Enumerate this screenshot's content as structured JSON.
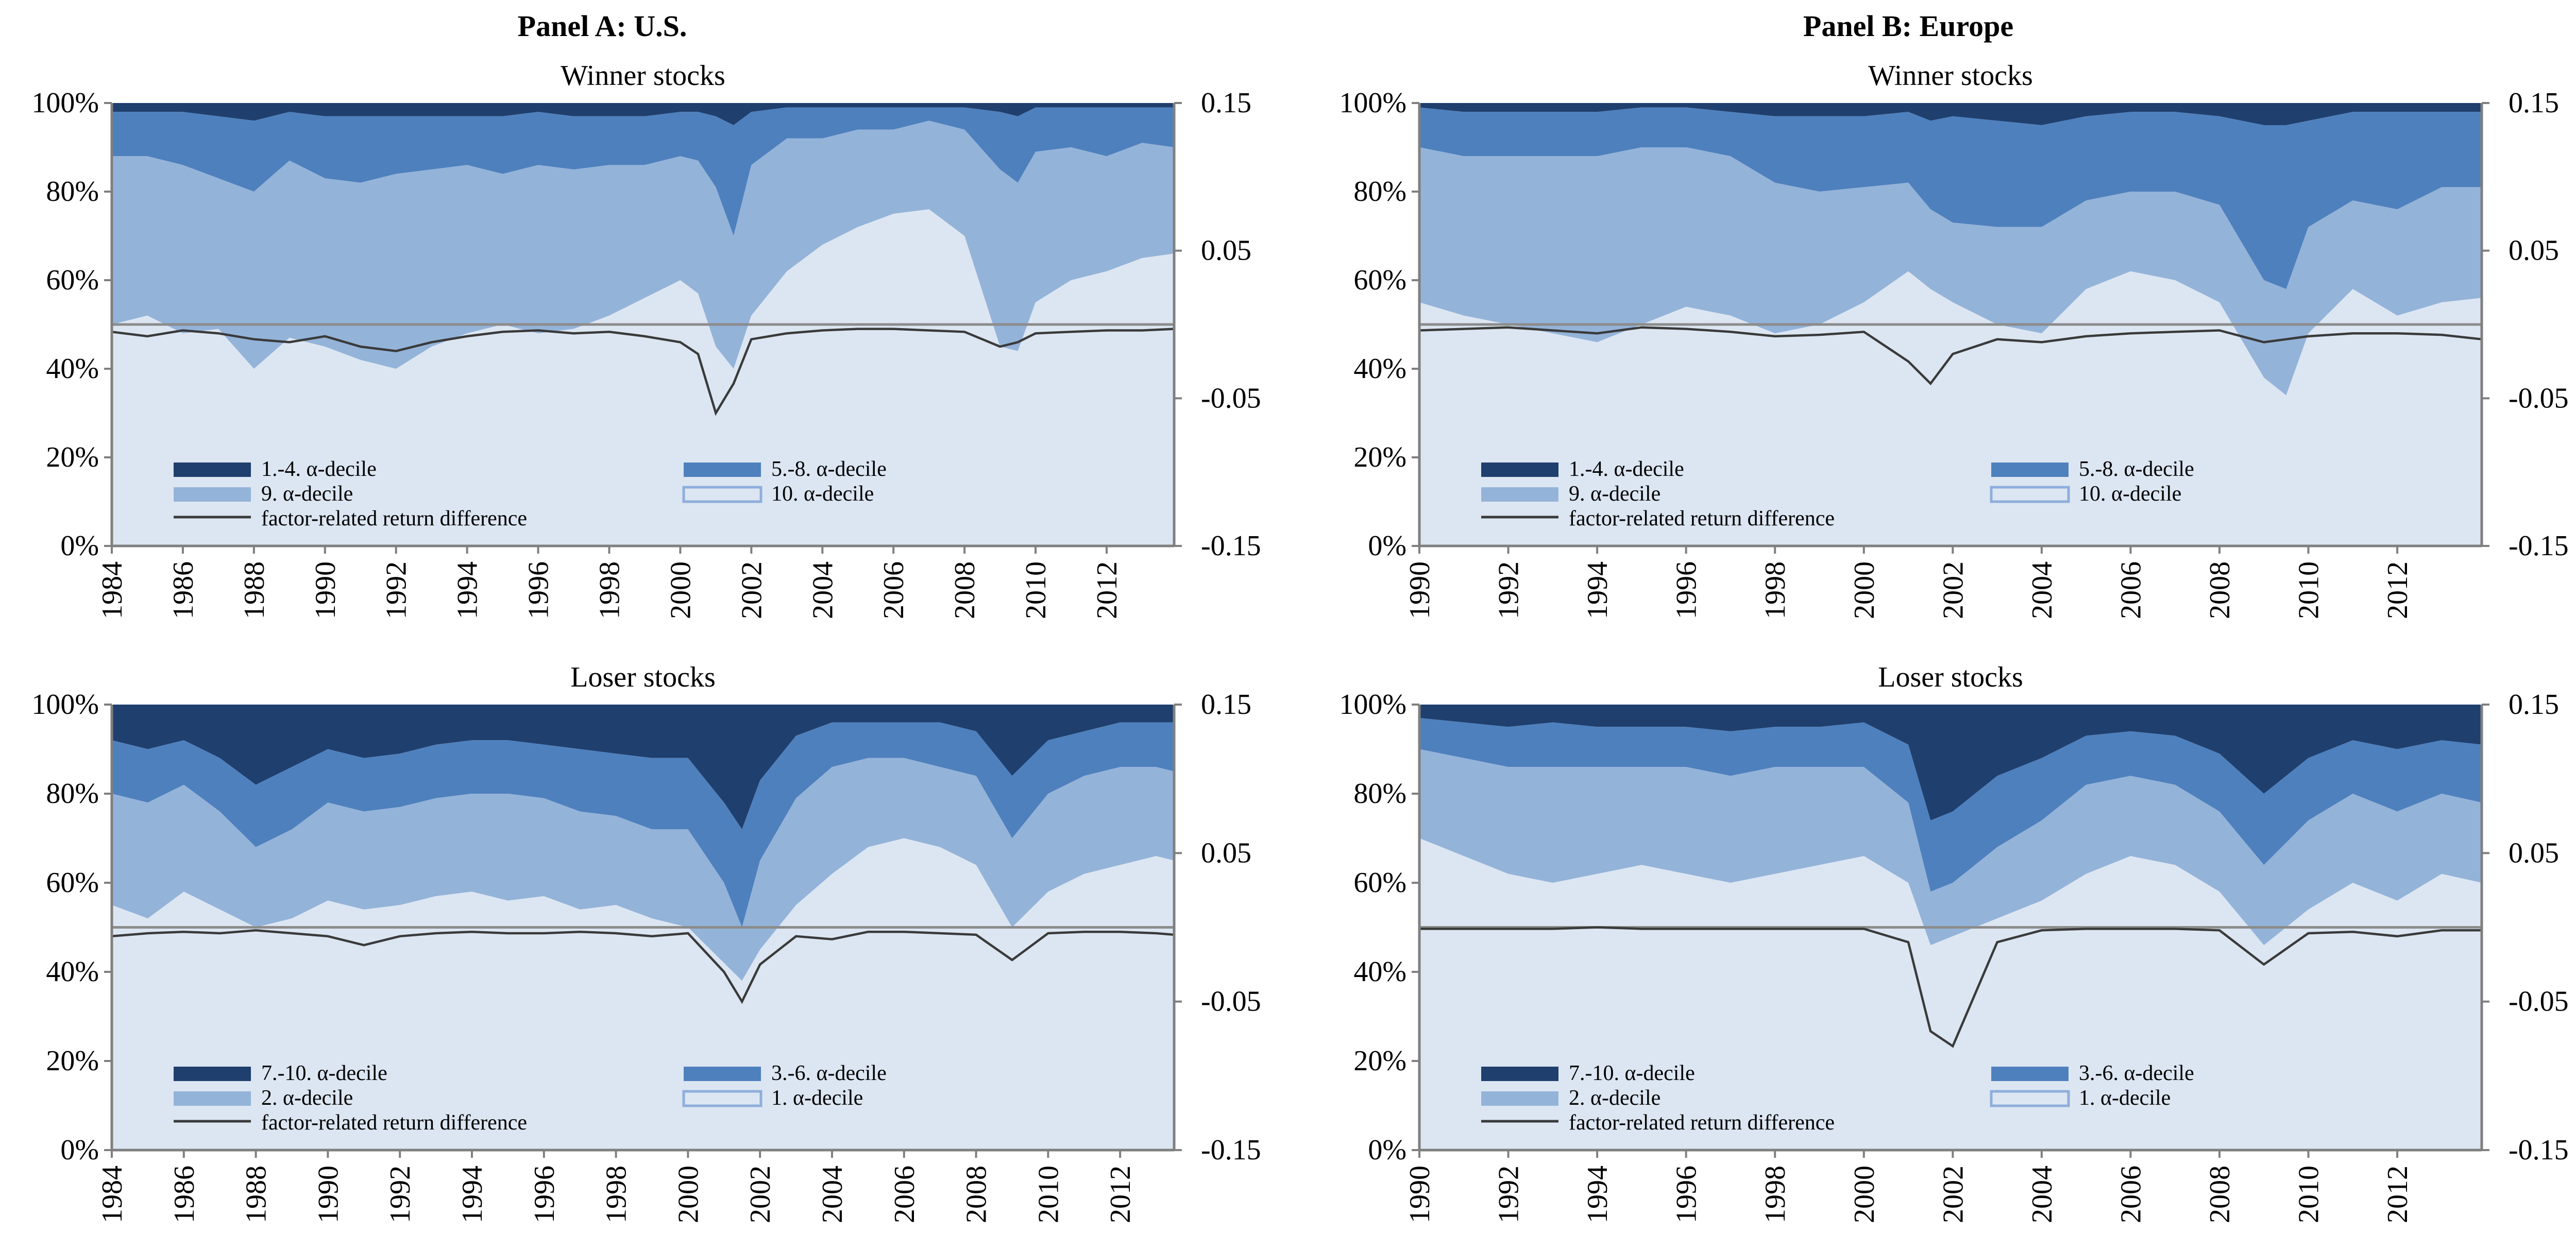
{
  "colors": {
    "band_1": "#1f3f6e",
    "band_2": "#4e80bd",
    "band_3": "#94b3d9",
    "band_4": "#dce6f2",
    "band_4_border": "#8eaedc",
    "line": "#3a3a3a",
    "zero_line": "#8c8c8c",
    "axis": "#7f7f7f"
  },
  "panels": [
    {
      "title": "Panel A: U.S."
    },
    {
      "title": "Panel B: Europe"
    }
  ],
  "chart_data": [
    {
      "type": "area",
      "panel": "Panel A: U.S.",
      "title": "Winner stocks",
      "x_start": 1984,
      "x_end": 2013.9,
      "x_ticks": [
        "1984",
        "1986",
        "1988",
        "1990",
        "1992",
        "1994",
        "1996",
        "1998",
        "2000",
        "2002",
        "2004",
        "2006",
        "2008",
        "2010",
        "2012"
      ],
      "y_left_ticks": [
        "0%",
        "20%",
        "40%",
        "60%",
        "80%",
        "100%"
      ],
      "y_left_range": [
        0,
        100
      ],
      "y_right_ticks": [
        "-0.15",
        "-0.05",
        "0.05",
        "0.15"
      ],
      "y_right_range": [
        -0.15,
        0.15
      ],
      "legend": [
        "1.-4. α-decile",
        "5.-8. α-decile",
        "9. α-decile",
        "10. α-decile",
        "factor-related return difference"
      ],
      "x": [
        1984,
        1985,
        1986,
        1987,
        1988,
        1989,
        1990,
        1991,
        1992,
        1993,
        1994,
        1995,
        1996,
        1997,
        1998,
        1999,
        2000,
        2000.5,
        2001,
        2001.5,
        2002,
        2003,
        2004,
        2005,
        2006,
        2007,
        2008,
        2009,
        2009.5,
        2010,
        2011,
        2012,
        2013,
        2013.9
      ],
      "series": [
        {
          "name": "10. α-decile",
          "values": [
            50,
            52,
            48,
            49,
            40,
            47,
            45,
            42,
            40,
            45,
            48,
            50,
            48,
            49,
            52,
            56,
            60,
            57,
            45,
            40,
            52,
            62,
            68,
            72,
            75,
            76,
            70,
            45,
            44,
            55,
            60,
            62,
            65,
            66
          ]
        },
        {
          "name": "9. α-decile",
          "values": [
            38,
            36,
            38,
            34,
            40,
            40,
            38,
            40,
            44,
            40,
            38,
            34,
            38,
            36,
            34,
            30,
            28,
            30,
            36,
            30,
            34,
            30,
            24,
            22,
            19,
            20,
            24,
            40,
            38,
            34,
            30,
            26,
            26,
            24
          ]
        },
        {
          "name": "5.-8. α-decile",
          "values": [
            10,
            10,
            12,
            14,
            16,
            11,
            14,
            15,
            13,
            12,
            11,
            13,
            12,
            12,
            11,
            11,
            10,
            11,
            16,
            25,
            12,
            7,
            7,
            5,
            5,
            3,
            5,
            13,
            15,
            10,
            9,
            11,
            8,
            9
          ]
        },
        {
          "name": "1.-4. α-decile",
          "values": [
            2,
            2,
            2,
            3,
            4,
            2,
            3,
            3,
            3,
            3,
            3,
            3,
            2,
            3,
            3,
            3,
            2,
            2,
            3,
            5,
            2,
            1,
            1,
            1,
            1,
            1,
            1,
            2,
            3,
            1,
            1,
            1,
            1,
            1
          ]
        }
      ],
      "line": {
        "name": "factor-related return difference",
        "values": [
          -0.005,
          -0.008,
          -0.004,
          -0.006,
          -0.01,
          -0.012,
          -0.008,
          -0.015,
          -0.018,
          -0.012,
          -0.008,
          -0.005,
          -0.004,
          -0.006,
          -0.005,
          -0.008,
          -0.012,
          -0.02,
          -0.06,
          -0.04,
          -0.01,
          -0.006,
          -0.004,
          -0.003,
          -0.003,
          -0.004,
          -0.005,
          -0.015,
          -0.012,
          -0.006,
          -0.005,
          -0.004,
          -0.004,
          -0.003
        ]
      }
    },
    {
      "type": "area",
      "panel": "Panel B: Europe",
      "title": "Winner stocks",
      "x_start": 1990,
      "x_end": 2013.9,
      "x_ticks": [
        "1990",
        "1992",
        "1994",
        "1996",
        "1998",
        "2000",
        "2002",
        "2004",
        "2006",
        "2008",
        "2010",
        "2012"
      ],
      "y_left_ticks": [
        "0%",
        "20%",
        "40%",
        "60%",
        "80%",
        "100%"
      ],
      "y_left_range": [
        0,
        100
      ],
      "y_right_ticks": [
        "-0.15",
        "-0.05",
        "0.05",
        "0.15"
      ],
      "y_right_range": [
        -0.15,
        0.15
      ],
      "legend": [
        "1.-4. α-decile",
        "5.-8. α-decile",
        "9. α-decile",
        "10. α-decile",
        "factor-related return difference"
      ],
      "x": [
        1990,
        1991,
        1992,
        1993,
        1994,
        1995,
        1996,
        1997,
        1998,
        1999,
        2000,
        2001,
        2001.5,
        2002,
        2003,
        2004,
        2005,
        2006,
        2007,
        2008,
        2009,
        2009.5,
        2010,
        2011,
        2012,
        2013,
        2013.9
      ],
      "series": [
        {
          "name": "10. α-decile",
          "values": [
            55,
            52,
            50,
            48,
            46,
            50,
            54,
            52,
            48,
            50,
            55,
            62,
            58,
            55,
            50,
            48,
            58,
            62,
            60,
            55,
            38,
            34,
            48,
            58,
            52,
            55,
            56
          ]
        },
        {
          "name": "9. α-decile",
          "values": [
            35,
            36,
            38,
            40,
            42,
            40,
            36,
            36,
            34,
            30,
            26,
            20,
            18,
            18,
            22,
            24,
            20,
            18,
            20,
            22,
            22,
            24,
            24,
            20,
            24,
            26,
            25
          ]
        },
        {
          "name": "5.-8. α-decile",
          "values": [
            9,
            10,
            10,
            10,
            10,
            9,
            9,
            10,
            15,
            17,
            16,
            16,
            20,
            24,
            24,
            23,
            19,
            18,
            18,
            20,
            35,
            37,
            24,
            20,
            22,
            17,
            17
          ]
        },
        {
          "name": "1.-4. α-decile",
          "values": [
            1,
            2,
            2,
            2,
            2,
            1,
            1,
            2,
            3,
            3,
            3,
            2,
            4,
            3,
            4,
            5,
            3,
            2,
            2,
            3,
            5,
            5,
            4,
            2,
            2,
            2,
            2
          ]
        }
      ],
      "line": {
        "name": "factor-related return difference",
        "values": [
          -0.004,
          -0.003,
          -0.002,
          -0.004,
          -0.006,
          -0.002,
          -0.003,
          -0.005,
          -0.008,
          -0.007,
          -0.005,
          -0.025,
          -0.04,
          -0.02,
          -0.01,
          -0.012,
          -0.008,
          -0.006,
          -0.005,
          -0.004,
          -0.012,
          -0.01,
          -0.008,
          -0.006,
          -0.006,
          -0.007,
          -0.01
        ]
      }
    },
    {
      "type": "area",
      "panel": "Panel A: U.S.",
      "title": "Loser stocks",
      "x_start": 1984,
      "x_end": 2013.5,
      "x_ticks": [
        "1984",
        "1986",
        "1988",
        "1990",
        "1992",
        "1994",
        "1996",
        "1998",
        "2000",
        "2002",
        "2004",
        "2006",
        "2008",
        "2010",
        "2012"
      ],
      "y_left_ticks": [
        "0%",
        "20%",
        "40%",
        "60%",
        "80%",
        "100%"
      ],
      "y_left_range": [
        0,
        100
      ],
      "y_right_ticks": [
        "-0.15",
        "-0.05",
        "0.05",
        "0.15"
      ],
      "y_right_range": [
        -0.15,
        0.15
      ],
      "legend": [
        "7.-10. α-decile",
        "3.-6. α-decile",
        "2. α-decile",
        "1. α-decile",
        "factor-related return difference"
      ],
      "x": [
        1984,
        1985,
        1986,
        1987,
        1988,
        1989,
        1990,
        1991,
        1992,
        1993,
        1994,
        1995,
        1996,
        1997,
        1998,
        1999,
        2000,
        2001,
        2001.5,
        2002,
        2003,
        2004,
        2005,
        2006,
        2007,
        2008,
        2009,
        2010,
        2011,
        2012,
        2013,
        2013.5
      ],
      "series": [
        {
          "name": "1. α-decile",
          "values": [
            55,
            52,
            58,
            54,
            50,
            52,
            56,
            54,
            55,
            57,
            58,
            56,
            57,
            54,
            55,
            52,
            50,
            42,
            38,
            45,
            55,
            62,
            68,
            70,
            68,
            64,
            50,
            58,
            62,
            64,
            66,
            65
          ]
        },
        {
          "name": "2. α-decile",
          "values": [
            25,
            26,
            24,
            22,
            18,
            20,
            22,
            22,
            22,
            22,
            22,
            24,
            22,
            22,
            20,
            20,
            22,
            18,
            12,
            20,
            24,
            24,
            20,
            18,
            18,
            20,
            20,
            22,
            22,
            22,
            20,
            20
          ]
        },
        {
          "name": "3.-6. α-decile",
          "values": [
            12,
            12,
            10,
            12,
            14,
            14,
            12,
            12,
            12,
            12,
            12,
            12,
            12,
            14,
            14,
            16,
            16,
            18,
            22,
            18,
            14,
            10,
            8,
            8,
            10,
            10,
            14,
            12,
            10,
            10,
            10,
            11
          ]
        },
        {
          "name": "7.-10. α-decile",
          "values": [
            8,
            10,
            8,
            12,
            18,
            14,
            10,
            12,
            11,
            9,
            8,
            8,
            9,
            10,
            11,
            12,
            12,
            22,
            28,
            17,
            7,
            4,
            4,
            4,
            4,
            6,
            16,
            8,
            6,
            4,
            4,
            4
          ]
        }
      ],
      "line": {
        "name": "factor-related return difference",
        "values": [
          -0.006,
          -0.004,
          -0.003,
          -0.004,
          -0.002,
          -0.004,
          -0.006,
          -0.012,
          -0.006,
          -0.004,
          -0.003,
          -0.004,
          -0.004,
          -0.003,
          -0.004,
          -0.006,
          -0.004,
          -0.03,
          -0.05,
          -0.025,
          -0.006,
          -0.008,
          -0.003,
          -0.003,
          -0.004,
          -0.005,
          -0.022,
          -0.004,
          -0.003,
          -0.003,
          -0.004,
          -0.005
        ]
      }
    },
    {
      "type": "area",
      "panel": "Panel B: Europe",
      "title": "Loser stocks",
      "x_start": 1990,
      "x_end": 2013.9,
      "x_ticks": [
        "1990",
        "1992",
        "1994",
        "1996",
        "1998",
        "2000",
        "2002",
        "2004",
        "2006",
        "2008",
        "2010",
        "2012"
      ],
      "y_left_ticks": [
        "0%",
        "20%",
        "40%",
        "60%",
        "80%",
        "100%"
      ],
      "y_left_range": [
        0,
        100
      ],
      "y_right_ticks": [
        "-0.15",
        "-0.05",
        "0.05",
        "0.15"
      ],
      "y_right_range": [
        -0.15,
        0.15
      ],
      "legend": [
        "7.-10. α-decile",
        "3.-6. α-decile",
        "2. α-decile",
        "1. α-decile",
        "factor-related return difference"
      ],
      "x": [
        1990,
        1991,
        1992,
        1993,
        1994,
        1995,
        1996,
        1997,
        1998,
        1999,
        2000,
        2001,
        2001.5,
        2002,
        2003,
        2004,
        2005,
        2006,
        2007,
        2008,
        2009,
        2010,
        2011,
        2012,
        2013,
        2013.9
      ],
      "series": [
        {
          "name": "1. α-decile",
          "values": [
            70,
            66,
            62,
            60,
            62,
            64,
            62,
            60,
            62,
            64,
            66,
            60,
            46,
            48,
            52,
            56,
            62,
            66,
            64,
            58,
            46,
            54,
            60,
            56,
            62,
            60
          ]
        },
        {
          "name": "2. α-decile",
          "values": [
            20,
            22,
            24,
            26,
            24,
            22,
            24,
            24,
            24,
            22,
            20,
            18,
            12,
            12,
            16,
            18,
            20,
            18,
            18,
            18,
            18,
            20,
            20,
            20,
            18,
            18
          ]
        },
        {
          "name": "3.-6. α-decile",
          "values": [
            7,
            8,
            9,
            10,
            9,
            9,
            9,
            10,
            9,
            9,
            10,
            13,
            16,
            16,
            16,
            14,
            11,
            10,
            11,
            13,
            16,
            14,
            12,
            14,
            12,
            13
          ]
        },
        {
          "name": "7.-10. α-decile",
          "values": [
            3,
            4,
            5,
            4,
            5,
            5,
            5,
            6,
            5,
            5,
            4,
            9,
            26,
            24,
            16,
            12,
            7,
            6,
            7,
            11,
            20,
            12,
            8,
            10,
            8,
            9
          ]
        }
      ],
      "line": {
        "name": "factor-related return difference",
        "values": [
          -0.001,
          -0.001,
          -0.001,
          -0.001,
          0.0,
          -0.001,
          -0.001,
          -0.001,
          -0.001,
          -0.001,
          -0.001,
          -0.01,
          -0.07,
          -0.08,
          -0.01,
          -0.002,
          -0.001,
          -0.001,
          -0.001,
          -0.002,
          -0.025,
          -0.004,
          -0.003,
          -0.006,
          -0.002,
          -0.002
        ]
      }
    }
  ]
}
